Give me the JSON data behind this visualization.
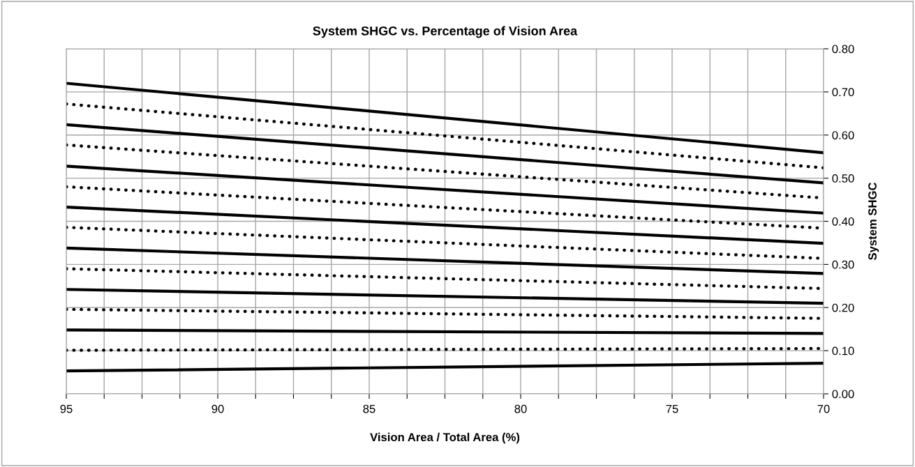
{
  "chart_data": {
    "type": "line",
    "title": "System SHGC vs. Percentage of Vision Area",
    "xlabel": "Vision Area / Total Area (%)",
    "ylabel": "System SHGC",
    "x": [
      95,
      70
    ],
    "xlim": [
      95,
      70
    ],
    "xticks": [
      95,
      {
        "value": 93.75,
        "label": null
      },
      {
        "value": 92.5,
        "label": null
      },
      {
        "value": 91.25,
        "label": null
      },
      90,
      {
        "value": 88.75,
        "label": null
      },
      {
        "value": 87.5,
        "label": null
      },
      {
        "value": 86.25,
        "label": null
      },
      85,
      {
        "value": 83.75,
        "label": null
      },
      {
        "value": 82.5,
        "label": null
      },
      {
        "value": 81.25,
        "label": null
      },
      80,
      {
        "value": 78.75,
        "label": null
      },
      {
        "value": 77.5,
        "label": null
      },
      {
        "value": 76.25,
        "label": null
      },
      75,
      {
        "value": 73.75,
        "label": null
      },
      {
        "value": 72.5,
        "label": null
      },
      {
        "value": 71.25,
        "label": null
      },
      70
    ],
    "ylim": [
      0,
      0.8
    ],
    "yticks": [
      {
        "value": 0,
        "label": "0.00"
      },
      {
        "value": 0.1,
        "label": "0.10"
      },
      {
        "value": 0.2,
        "label": "0.20"
      },
      {
        "value": 0.3,
        "label": "0.30"
      },
      {
        "value": 0.4,
        "label": "0.40"
      },
      {
        "value": 0.5,
        "label": "0.50"
      },
      {
        "value": 0.6,
        "label": "0.60"
      },
      {
        "value": 0.7,
        "label": "0.70"
      },
      {
        "value": 0.8,
        "label": "0.80"
      }
    ],
    "grid": true,
    "legend": false,
    "marker": "none",
    "series": [
      {
        "color": "#000000",
        "line_style": "solid",
        "values": [
          0.72,
          0.559
        ]
      },
      {
        "color": "#000000",
        "line_style": "dotted",
        "values": [
          0.672,
          0.524
        ]
      },
      {
        "color": "#000000",
        "line_style": "solid",
        "values": [
          0.624,
          0.489
        ]
      },
      {
        "color": "#000000",
        "line_style": "dotted",
        "values": [
          0.577,
          0.454
        ]
      },
      {
        "color": "#000000",
        "line_style": "solid",
        "values": [
          0.528,
          0.419
        ]
      },
      {
        "color": "#000000",
        "line_style": "dotted",
        "values": [
          0.48,
          0.384
        ]
      },
      {
        "color": "#000000",
        "line_style": "solid",
        "values": [
          0.433,
          0.349
        ]
      },
      {
        "color": "#000000",
        "line_style": "dotted",
        "values": [
          0.386,
          0.314
        ]
      },
      {
        "color": "#000000",
        "line_style": "solid",
        "values": [
          0.338,
          0.279
        ]
      },
      {
        "color": "#000000",
        "line_style": "dotted",
        "values": [
          0.29,
          0.244
        ]
      },
      {
        "color": "#000000",
        "line_style": "solid",
        "values": [
          0.242,
          0.21
        ]
      },
      {
        "color": "#000000",
        "line_style": "dotted",
        "values": [
          0.196,
          0.175
        ]
      },
      {
        "color": "#000000",
        "line_style": "solid",
        "values": [
          0.148,
          0.14
        ]
      },
      {
        "color": "#000000",
        "line_style": "dotted",
        "values": [
          0.101,
          0.105
        ]
      },
      {
        "color": "#000000",
        "line_style": "solid",
        "values": [
          0.053,
          0.071
        ]
      }
    ]
  }
}
